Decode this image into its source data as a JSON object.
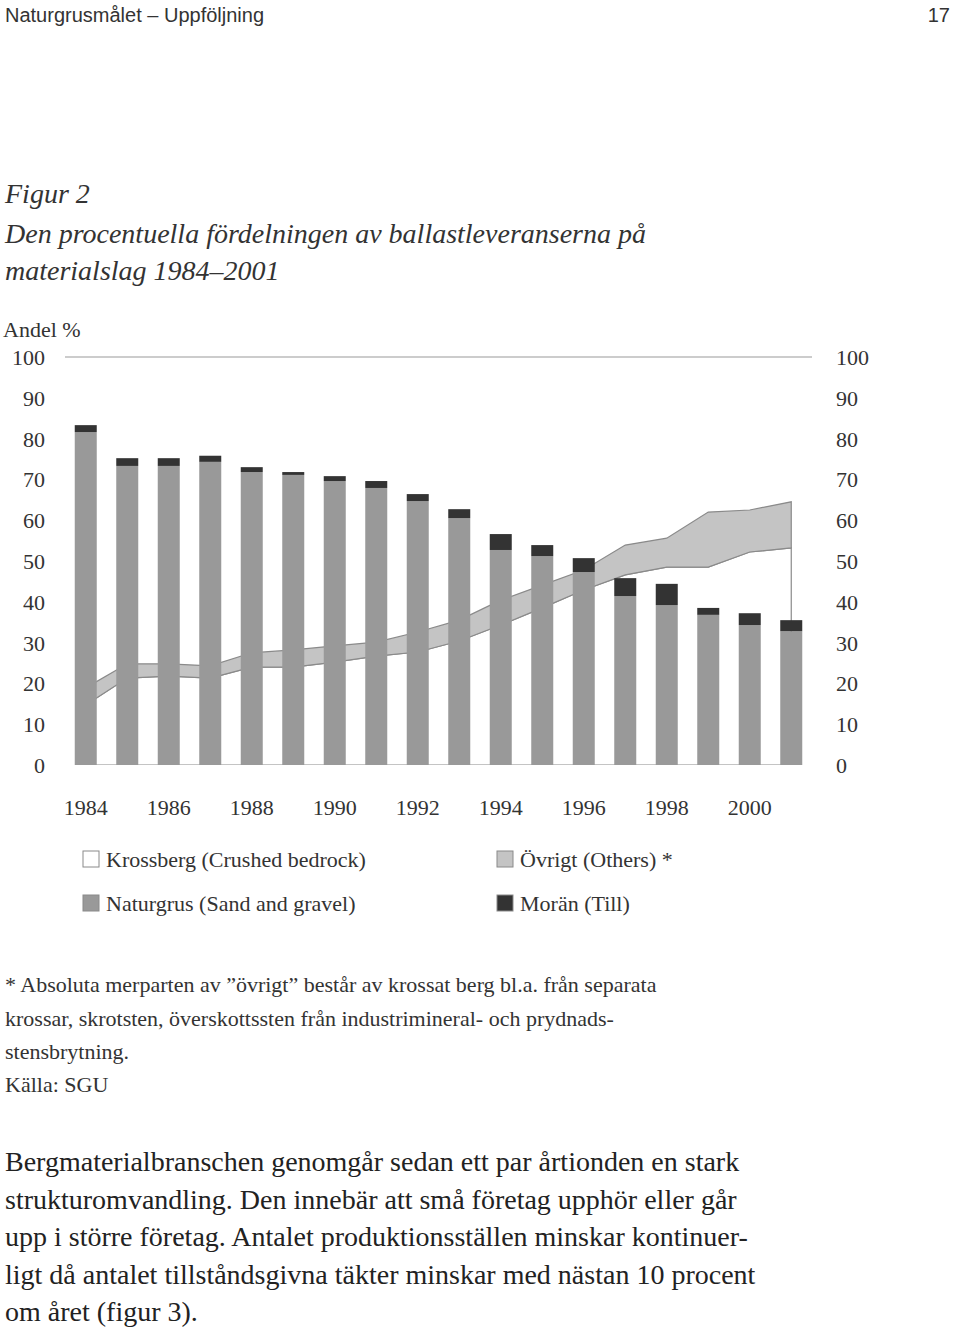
{
  "header": {
    "title": "Naturgrusmålet – Uppföljning",
    "page": 17
  },
  "figure": {
    "label": "Figur 2",
    "caption_lines": [
      "Den procentuella fördelningen av ballastleveranserna på",
      "materialslag 1984–2001"
    ]
  },
  "chart_data": {
    "type": "bar",
    "stacked": true,
    "ylabel": "Andel %",
    "categories": [
      1984,
      null,
      1986,
      null,
      1988,
      null,
      1990,
      null,
      1992,
      null,
      1994,
      null,
      1996,
      null,
      1998,
      null,
      2000,
      null
    ],
    "series": [
      {
        "name": "Krossberg (Crushed bedrock)",
        "type": "area",
        "color": "#ffffff",
        "values": [
          14.7,
          21.3,
          21.8,
          21.3,
          24.0,
          24.0,
          25.2,
          26.7,
          27.7,
          30.4,
          34.3,
          38.5,
          42.9,
          46.6,
          48.5,
          48.5,
          52.2,
          53.2
        ]
      },
      {
        "name": "Naturgrus (Sand and gravel)",
        "type": "bar",
        "color": "#999999",
        "values": [
          81.6,
          73.3,
          73.3,
          74.3,
          71.8,
          71.1,
          69.6,
          67.9,
          64.7,
          60.5,
          52.7,
          51.2,
          47.3,
          41.4,
          39.2,
          36.8,
          34.3,
          32.8
        ]
      },
      {
        "name": "Övrigt (Others) *",
        "type": "area",
        "color": "#c4c4c4",
        "values": [
          4.2,
          3.5,
          3.0,
          3.0,
          3.5,
          4.2,
          4.0,
          3.4,
          4.9,
          5.1,
          6.1,
          5.6,
          4.9,
          7.3,
          7.1,
          13.5,
          10.3,
          11.3
        ]
      },
      {
        "name": "Morän (Till)",
        "type": "bar",
        "color": "#333333",
        "values": [
          1.7,
          1.9,
          1.9,
          1.5,
          1.2,
          0.7,
          1.2,
          1.7,
          1.7,
          2.2,
          3.9,
          2.7,
          3.4,
          4.4,
          5.2,
          1.7,
          2.9,
          2.7
        ]
      }
    ],
    "ylim": [
      0,
      100
    ],
    "yticks": [
      0,
      10,
      20,
      30,
      40,
      50,
      60,
      70,
      80,
      90,
      100
    ],
    "grid": false,
    "legend": "bottom"
  },
  "footnote": {
    "lines": [
      "* Absoluta merparten av ”övrigt” består av krossat berg bl.a. från separata",
      "krossar, skrotsten, överskottssten från industrimineral- och prydnads-",
      "stensbrytning."
    ]
  },
  "source": "Källa: SGU",
  "body": {
    "lines": [
      "Bergmaterialbranschen genomgår sedan ett par årtionden en stark",
      "strukturomvandling. Den innebär att små företag upphör eller går",
      "upp i större företag. Antalet produktionsställen minskar kontinuer-",
      "ligt då antalet tillståndsgivna täkter minskar med nästan 10 procent",
      "om året (figur 3)."
    ]
  }
}
